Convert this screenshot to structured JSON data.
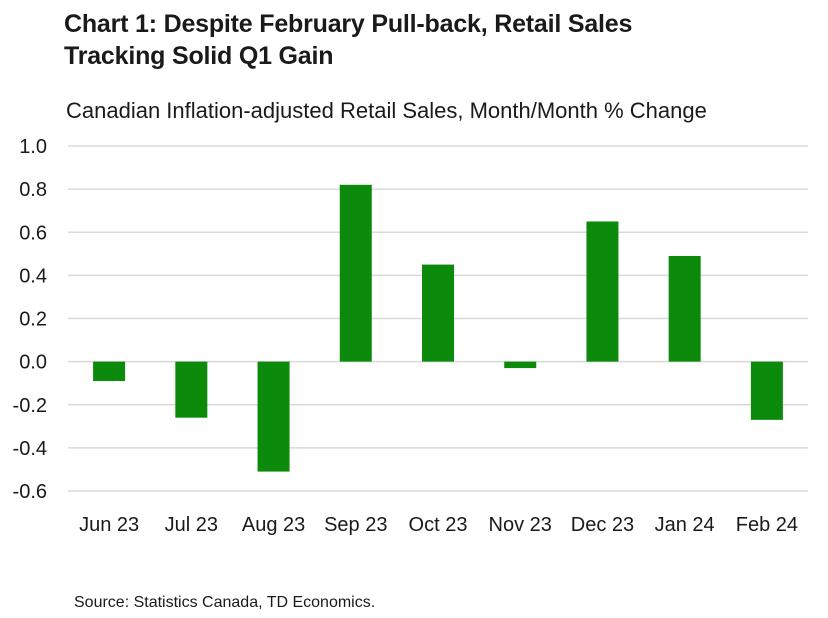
{
  "chart_data": {
    "type": "bar",
    "title": "Chart 1: Despite February Pull-back, Retail Sales Tracking Solid Q1 Gain",
    "title_lines": [
      "Chart 1: Despite February Pull-back, Retail Sales",
      "Tracking Solid Q1 Gain"
    ],
    "subtitle": "Canadian Inflation-adjusted Retail Sales, Month/Month % Change",
    "xlabel": "",
    "ylabel": "",
    "categories": [
      "Jun 23",
      "Jul 23",
      "Aug 23",
      "Sep 23",
      "Oct 23",
      "Nov 23",
      "Dec 23",
      "Jan 24",
      "Feb 24"
    ],
    "values": [
      -0.09,
      -0.26,
      -0.51,
      0.82,
      0.45,
      -0.03,
      0.65,
      0.49,
      -0.27
    ],
    "ylim": [
      -0.6,
      1.0
    ],
    "yticks": [
      1.0,
      0.8,
      0.6,
      0.4,
      0.2,
      0.0,
      -0.2,
      -0.4,
      -0.6
    ],
    "ytick_labels": [
      "1.0",
      "0.8",
      "0.6",
      "0.4",
      "0.2",
      "0.0",
      "-0.2",
      "-0.4",
      "-0.6"
    ],
    "grid": true,
    "bar_color": "#0b8a0b",
    "grid_color": "#d9d9d9",
    "source": "Source: Statistics Canada, TD Economics."
  }
}
